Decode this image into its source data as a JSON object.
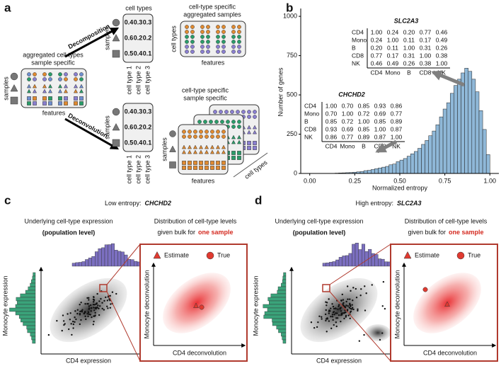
{
  "panel_a": {
    "label": "a",
    "arrow_top": "Decomposition",
    "arrow_bottom": "Deconvolution",
    "input": {
      "title": [
        "aggregated cell types",
        "sample specific"
      ],
      "row_axis": "samples",
      "col_axis": "features"
    },
    "matrix_top": {
      "col_axis": "cell types",
      "row_axis": "samples",
      "rows": [
        [
          "0.4",
          "0.3",
          "0.3"
        ],
        [
          "0.6",
          "0.2",
          "0.2"
        ],
        [
          "0.5",
          "0.4",
          "0.1"
        ]
      ],
      "col_labels": [
        "cell type 1",
        "cell type 2",
        "cell type 3"
      ]
    },
    "matrix_bottom": {
      "row_axis": "samples",
      "rows": [
        [
          "0.4",
          "0.3",
          "0.3"
        ],
        [
          "0.6",
          "0.2",
          "0.2"
        ],
        [
          "0.5",
          "0.4",
          "0.1"
        ]
      ],
      "col_labels": [
        "cell type 1",
        "cell type 2",
        "cell type 3"
      ]
    },
    "output_top": {
      "title": [
        "cell-type specific",
        "aggregated samples"
      ],
      "row_axis": "cell types",
      "col_axis": "features"
    },
    "output_bottom": {
      "title": [
        "cell-type specific",
        "sample specific"
      ],
      "row_axis": "samples",
      "col_axis": "features",
      "depth_axis": "cell types"
    }
  },
  "panel_b": {
    "label": "b",
    "chart": {
      "type": "histogram",
      "x_label": "Normalized entropy",
      "y_label": "Number of genes",
      "bins": [
        0.14,
        0.16,
        0.18,
        0.2,
        0.22,
        0.24,
        0.26,
        0.28,
        0.3,
        0.32,
        0.34,
        0.36,
        0.38,
        0.4,
        0.42,
        0.44,
        0.46,
        0.48,
        0.5,
        0.52,
        0.54,
        0.56,
        0.58,
        0.6,
        0.62,
        0.64,
        0.66,
        0.68,
        0.7,
        0.72,
        0.74,
        0.76,
        0.78,
        0.8,
        0.82,
        0.84,
        0.86,
        0.88,
        0.9,
        0.92,
        0.94,
        0.96,
        0.98,
        1.0
      ],
      "counts": [
        2,
        3,
        4,
        5,
        6,
        8,
        10,
        12,
        18,
        20,
        25,
        30,
        35,
        40,
        45,
        55,
        60,
        75,
        85,
        95,
        110,
        125,
        140,
        160,
        185,
        210,
        240,
        270,
        310,
        360,
        410,
        450,
        510,
        560,
        600,
        640,
        670,
        650,
        600,
        520,
        400,
        280,
        120
      ],
      "color": "#8fb8d8",
      "xlim": [
        -0.05,
        1.05
      ],
      "ylim": [
        0,
        1050
      ],
      "xticks": [
        {
          "value": 0,
          "label": "0.00"
        },
        {
          "value": 0.25,
          "label": "0.25"
        },
        {
          "value": 0.5,
          "label": "0.50"
        },
        {
          "value": 0.75,
          "label": "0.75"
        },
        {
          "value": 1,
          "label": "1.00"
        }
      ],
      "yticks": [
        0,
        250,
        500,
        750,
        1000
      ]
    },
    "matrices": [
      {
        "title": "SLC2A3",
        "row_labels": [
          "CD4",
          "Mono",
          "B",
          "CD8",
          "NK"
        ],
        "col_labels": [
          "CD4",
          "Mono",
          "B",
          "CD8",
          "NK"
        ],
        "rows": [
          [
            "1.00",
            "0.24",
            "0.20",
            "0.77",
            "0.46"
          ],
          [
            "0.24",
            "1.00",
            "0.11",
            "0.17",
            "0.49"
          ],
          [
            "0.20",
            "0.11",
            "1.00",
            "0.31",
            "0.26"
          ],
          [
            "0.77",
            "0.17",
            "0.31",
            "1.00",
            "0.38"
          ],
          [
            "0.46",
            "0.49",
            "0.26",
            "0.38",
            "1.00"
          ]
        ]
      },
      {
        "title": "CHCHD2",
        "row_labels": [
          "CD4",
          "Mono",
          "B",
          "CD8",
          "NK"
        ],
        "col_labels": [
          "CD4",
          "Mono",
          "B",
          "CD8",
          "NK"
        ],
        "rows": [
          [
            "1.00",
            "0.70",
            "0.85",
            "0.93",
            "0.86"
          ],
          [
            "0.70",
            "1.00",
            "0.72",
            "0.69",
            "0.77"
          ],
          [
            "0.85",
            "0.72",
            "1.00",
            "0.85",
            "0.89"
          ],
          [
            "0.93",
            "0.69",
            "0.85",
            "1.00",
            "0.87"
          ],
          [
            "0.86",
            "0.77",
            "0.89",
            "0.87",
            "1.00"
          ]
        ]
      }
    ]
  },
  "panel_c": {
    "label": "c",
    "title": "Low entropy:",
    "gene": "CHCHD2",
    "left_title": "Underlying cell-type expression",
    "left_subtitle": "(population level)",
    "right_title": "Distribution of cell-type levels",
    "right_title2": "given bulk for",
    "right_highlight": "one sample",
    "legend": [
      "Estimate",
      "True"
    ],
    "x_label": "CD4 expression",
    "y_label": "Monocyte expression",
    "inset_x_label": "CD4 deconvolution",
    "inset_y_label": "Monocyte deconvolution"
  },
  "panel_d": {
    "label": "d",
    "title": "High entropy:",
    "gene": "SLC2A3",
    "left_title": "Underlying cell-type expression",
    "left_subtitle": "(population level)",
    "right_title": "Distribution of cell-type levels",
    "right_title2": "given bulk for",
    "right_highlight": "one sample",
    "legend": [
      "Estimate",
      "True"
    ],
    "x_label": "CD4 expression",
    "y_label": "Monocyte expression",
    "inset_x_label": "CD4 deconvolution",
    "inset_y_label": "Monocyte deconvolution"
  }
}
